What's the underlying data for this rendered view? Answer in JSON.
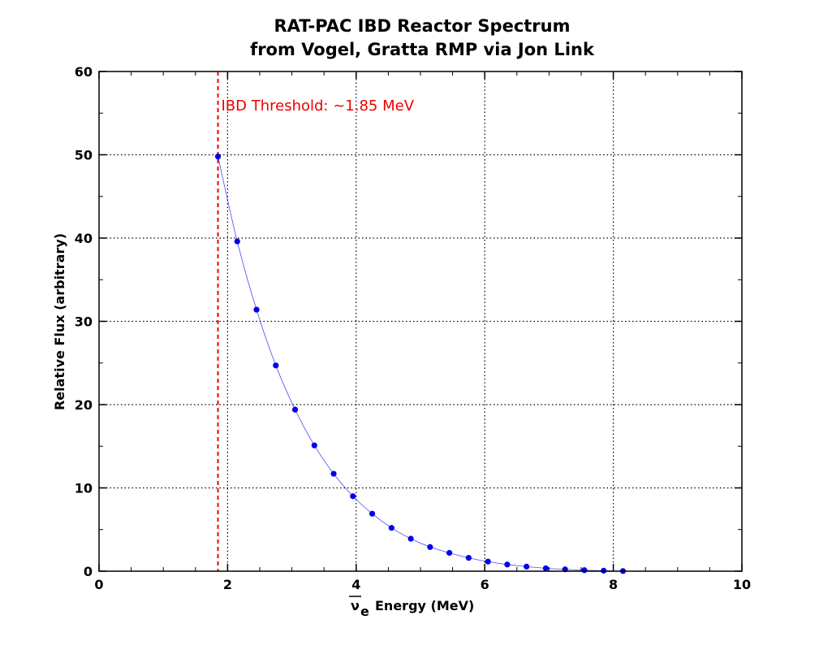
{
  "chart_data": {
    "type": "line",
    "title": [
      "RAT-PAC IBD Reactor Spectrum",
      "from Vogel, Gratta RMP via Jon Link"
    ],
    "xlabel": {
      "symbol": "ν",
      "subscript": "e",
      "text": "Energy (MeV)"
    },
    "ylabel": "Relative Flux (arbitrary)",
    "xlim": [
      0,
      10
    ],
    "ylim": [
      0,
      60
    ],
    "x_ticks": [
      "0",
      "2",
      "4",
      "6",
      "8",
      "10"
    ],
    "y_ticks": [
      "0",
      "10",
      "20",
      "30",
      "40",
      "50",
      "60"
    ],
    "grid": true,
    "grid_style": "dotted",
    "series": [
      {
        "color": "#0000ee",
        "markers": true,
        "x": [
          1.85,
          2.15,
          2.45,
          2.75,
          3.05,
          3.35,
          3.65,
          3.95,
          4.25,
          4.55,
          4.85,
          5.15,
          5.45,
          5.75,
          6.05,
          6.35,
          6.65,
          6.95,
          7.25,
          7.55,
          7.85,
          8.15
        ],
        "y": [
          49.8,
          39.6,
          31.4,
          24.7,
          19.4,
          15.1,
          11.7,
          9.0,
          6.9,
          5.2,
          3.9,
          2.9,
          2.2,
          1.6,
          1.15,
          0.8,
          0.55,
          0.35,
          0.22,
          0.12,
          0.06,
          0.02
        ]
      }
    ],
    "annotations": [
      {
        "type": "vline",
        "x": 1.85,
        "color": "#ee0000",
        "style": "dashed"
      },
      {
        "type": "text",
        "text": "IBD Threshold: ~1.85 MeV",
        "x": 1.9,
        "y": 55.3,
        "color": "#ee0000"
      }
    ]
  }
}
